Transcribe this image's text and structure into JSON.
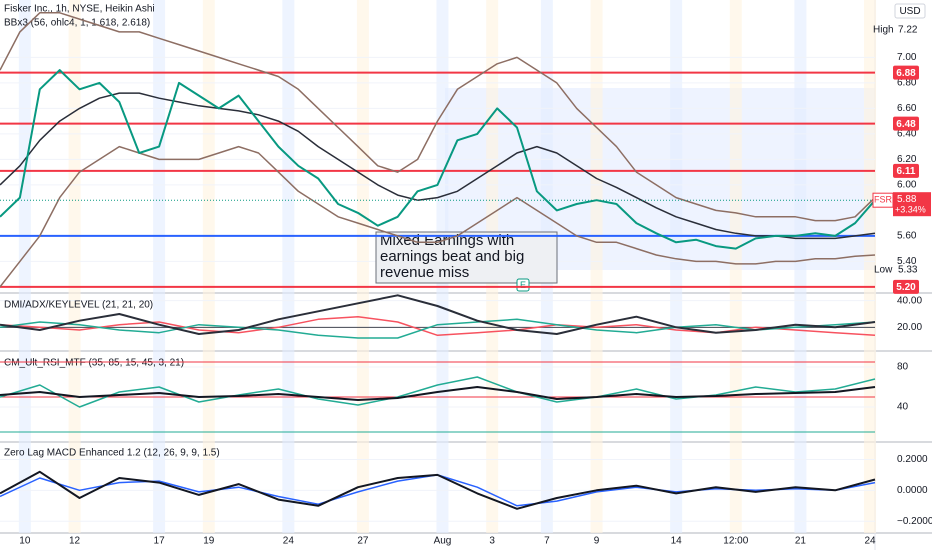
{
  "chart_data": [
    {
      "type": "line",
      "title": "Fisker Inc., 1h, NYSE, Heikin Ashi",
      "subtitle": "BBx3 (56, ohlc4, 1, 1.618, 2.618)",
      "x": [
        0,
        4,
        8,
        12,
        16,
        20,
        24,
        28,
        32,
        36,
        40,
        44,
        48,
        52,
        56,
        60,
        64,
        68,
        72,
        76,
        80,
        84,
        88,
        92,
        96,
        100,
        104,
        108,
        112,
        116,
        120,
        124,
        128,
        132,
        136,
        140,
        144,
        148,
        152,
        156,
        160,
        164,
        168,
        172,
        176
      ],
      "series": [
        {
          "color": "#8d6e63",
          "values": [
            6.9,
            7.2,
            7.35,
            7.35,
            7.3,
            7.25,
            7.2,
            7.2,
            7.15,
            7.1,
            7.05,
            7.0,
            6.95,
            6.9,
            6.85,
            6.75,
            6.6,
            6.45,
            6.3,
            6.15,
            6.1,
            6.2,
            6.5,
            6.75,
            6.85,
            6.95,
            7.0,
            6.9,
            6.8,
            6.6,
            6.45,
            6.3,
            6.1,
            6.0,
            5.9,
            5.85,
            5.8,
            5.78,
            5.75,
            5.75,
            5.75,
            5.72,
            5.72,
            5.75,
            5.9
          ]
        },
        {
          "color": "#8d6e63",
          "values": [
            5.2,
            5.4,
            5.6,
            5.9,
            6.1,
            6.2,
            6.3,
            6.25,
            6.2,
            6.2,
            6.2,
            6.25,
            6.3,
            6.25,
            6.1,
            5.95,
            5.85,
            5.75,
            5.7,
            5.65,
            5.6,
            5.55,
            5.55,
            5.6,
            5.7,
            5.8,
            5.9,
            5.8,
            5.7,
            5.6,
            5.55,
            5.55,
            5.5,
            5.45,
            5.42,
            5.4,
            5.4,
            5.38,
            5.38,
            5.4,
            5.4,
            5.42,
            5.42,
            5.44,
            5.45
          ]
        },
        {
          "color": "#2a2e39",
          "values": [
            6.0,
            6.15,
            6.35,
            6.5,
            6.6,
            6.68,
            6.72,
            6.72,
            6.68,
            6.65,
            6.62,
            6.6,
            6.58,
            6.55,
            6.5,
            6.42,
            6.3,
            6.2,
            6.1,
            6.0,
            5.92,
            5.88,
            5.9,
            5.95,
            6.05,
            6.15,
            6.25,
            6.3,
            6.25,
            6.15,
            6.05,
            5.98,
            5.9,
            5.82,
            5.75,
            5.7,
            5.65,
            5.62,
            5.6,
            5.6,
            5.58,
            5.58,
            5.58,
            5.6,
            5.62
          ]
        },
        {
          "color": "#089981",
          "values": [
            5.75,
            5.9,
            6.75,
            6.9,
            6.75,
            6.8,
            6.65,
            6.25,
            6.3,
            6.8,
            6.7,
            6.6,
            6.7,
            6.5,
            6.3,
            6.15,
            6.05,
            5.85,
            5.78,
            5.68,
            5.75,
            5.95,
            6.0,
            6.35,
            6.4,
            6.6,
            6.45,
            5.95,
            5.8,
            5.85,
            5.88,
            5.85,
            5.7,
            5.62,
            5.55,
            5.57,
            5.52,
            5.5,
            5.58,
            5.6,
            5.6,
            5.62,
            5.6,
            5.7,
            5.88
          ]
        }
      ],
      "ylim": [
        5.16,
        7.45
      ],
      "yticks": [
        {
          "value": 7,
          "label": "7.00"
        },
        {
          "value": 6.8,
          "label": "6.80"
        },
        {
          "value": 6.6,
          "label": "6.60"
        },
        {
          "value": 6.4,
          "label": "6.40"
        },
        {
          "value": 6.2,
          "label": "6.20"
        },
        {
          "value": 6,
          "label": "6.00"
        },
        {
          "value": 5.6,
          "label": "5.60"
        },
        {
          "value": 5.4,
          "label": "5.40"
        }
      ],
      "levels": [
        {
          "value": 6.88,
          "color": "#f23645"
        },
        {
          "value": 6.48,
          "color": "#f23645"
        },
        {
          "value": 6.11,
          "color": "#f23645"
        },
        {
          "value": 5.2,
          "label": "5.20",
          "color": "#f23645"
        },
        {
          "value": 5.6,
          "color": "#2962ff",
          "labeled": false
        }
      ],
      "currency": "USD",
      "high": {
        "label": "High",
        "value": 7.22
      },
      "low": {
        "label": "Low",
        "value": 5.33
      },
      "last": {
        "symbol": "FSR",
        "value": 5.88,
        "change": "+3.34%"
      },
      "annotation": [
        "Mixed Earnings with",
        "earnings beat and big",
        "revenue miss"
      ],
      "earnings_marker": "E"
    },
    {
      "type": "line",
      "title": "DMI/ADX/KEYLEVEL (21, 21, 20)",
      "x": [
        0,
        8,
        16,
        24,
        32,
        40,
        48,
        56,
        64,
        72,
        80,
        88,
        96,
        104,
        112,
        120,
        128,
        136,
        144,
        152,
        160,
        168,
        176
      ],
      "series": [
        {
          "color": "#f7525f",
          "values": [
            22,
            20,
            18,
            22,
            24,
            18,
            16,
            20,
            26,
            28,
            24,
            14,
            16,
            18,
            22,
            20,
            22,
            18,
            16,
            20,
            18,
            16,
            14
          ]
        },
        {
          "color": "#22ab94",
          "values": [
            20,
            24,
            22,
            18,
            16,
            22,
            20,
            18,
            14,
            12,
            12,
            22,
            24,
            26,
            22,
            18,
            16,
            20,
            22,
            18,
            20,
            22,
            24
          ]
        },
        {
          "color": "#2a2e39",
          "values": [
            22,
            18,
            25,
            30,
            22,
            15,
            18,
            26,
            32,
            38,
            44,
            36,
            25,
            18,
            15,
            22,
            28,
            20,
            16,
            18,
            22,
            20,
            24
          ]
        }
      ],
      "ylim": [
        3,
        45
      ],
      "yticks": [
        {
          "value": 40,
          "label": "40.00"
        },
        {
          "value": 20,
          "label": "20.00"
        }
      ],
      "levels": [
        {
          "value": 20,
          "color": "#434651",
          "labeled": false
        }
      ]
    },
    {
      "type": "line",
      "title": "CM_Ult_RSI_MTF (35, 85, 15, 45, 3, 21)",
      "x": [
        0,
        8,
        16,
        24,
        32,
        40,
        48,
        56,
        64,
        72,
        80,
        88,
        96,
        104,
        112,
        120,
        128,
        136,
        144,
        152,
        160,
        168,
        176
      ],
      "series": [
        {
          "color": "#22ab94",
          "values": [
            50,
            62,
            40,
            55,
            60,
            45,
            52,
            58,
            48,
            42,
            50,
            62,
            70,
            55,
            45,
            50,
            58,
            48,
            52,
            60,
            55,
            58,
            68
          ]
        },
        {
          "color": "#131722",
          "values": [
            52,
            55,
            50,
            52,
            54,
            50,
            51,
            53,
            50,
            47,
            49,
            55,
            60,
            55,
            48,
            50,
            53,
            50,
            51,
            53,
            54,
            55,
            60
          ]
        }
      ],
      "ylim": [
        7,
        95
      ],
      "yticks": [
        80,
        40
      ],
      "levels": [
        {
          "value": 85,
          "color": "#f23645",
          "labeled": false
        },
        {
          "value": 50,
          "color": "#f23645",
          "labeled": false
        },
        {
          "value": 15,
          "color": "#22ab94",
          "labeled": false
        }
      ]
    },
    {
      "type": "line",
      "title": "Zero Lag MACD Enhanced 1.2 (12, 26, 9, 9, 1.5)",
      "x": [
        0,
        8,
        16,
        24,
        32,
        40,
        48,
        56,
        64,
        72,
        80,
        88,
        96,
        104,
        112,
        120,
        128,
        136,
        144,
        152,
        160,
        168,
        176
      ],
      "series": [
        {
          "color": "#2962ff",
          "values": [
            -0.04,
            0.08,
            0.0,
            0.05,
            0.06,
            -0.01,
            0.02,
            -0.04,
            -0.09,
            -0.01,
            0.06,
            0.1,
            0.02,
            -0.1,
            -0.07,
            -0.01,
            0.02,
            -0.01,
            0.01,
            0.0,
            0.01,
            0.0,
            0.05
          ]
        },
        {
          "color": "#131722",
          "values": [
            -0.02,
            0.12,
            -0.05,
            0.08,
            0.05,
            -0.03,
            0.04,
            -0.06,
            -0.1,
            0.02,
            0.08,
            0.1,
            -0.02,
            -0.12,
            -0.05,
            0.0,
            0.03,
            -0.02,
            0.02,
            -0.01,
            0.02,
            0.0,
            0.07
          ]
        }
      ],
      "ylim": [
        -0.27,
        0.3
      ],
      "yticks": [
        {
          "value": 0.2,
          "label": "0.2000"
        },
        {
          "value": 0,
          "label": "0.0000"
        },
        {
          "value": -0.2,
          "label": "−0.2000"
        }
      ],
      "xlim": [
        0,
        176
      ],
      "xticks": [
        {
          "value": 5,
          "label": "10"
        },
        {
          "value": 15,
          "label": "12"
        },
        {
          "value": 32,
          "label": "17"
        },
        {
          "value": 42,
          "label": "19"
        },
        {
          "value": 58,
          "label": "24"
        },
        {
          "value": 73,
          "label": "27"
        },
        {
          "value": 89,
          "label": "Aug"
        },
        {
          "value": 99,
          "label": "3"
        },
        {
          "value": 110,
          "label": "7"
        },
        {
          "value": 120,
          "label": "9"
        },
        {
          "value": 136,
          "label": "14"
        },
        {
          "value": 148,
          "label": "12:00"
        },
        {
          "value": 161,
          "label": "21"
        },
        {
          "value": 175,
          "label": "24"
        }
      ]
    }
  ]
}
